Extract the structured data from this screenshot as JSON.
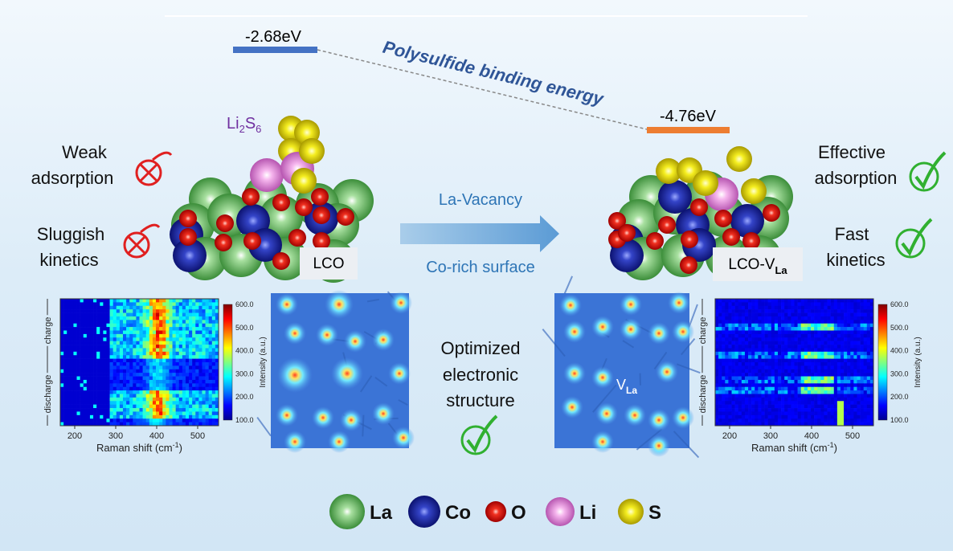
{
  "energy": {
    "lco": "-2.68eV",
    "lco_v": "-4.76eV",
    "label": "Polysulfide binding energy"
  },
  "adsorbate": [
    "Li",
    "2",
    "S",
    "6"
  ],
  "left": {
    "adsorption": [
      "Weak",
      "adsorption"
    ],
    "kinetics": [
      "Sluggish",
      "kinetics"
    ],
    "sample": "LCO"
  },
  "right": {
    "adsorption": [
      "Effective",
      "adsorption"
    ],
    "kinetics": [
      "Fast",
      "kinetics"
    ],
    "sample": [
      "LCO-V",
      "La"
    ]
  },
  "arrow": {
    "top": "La-Vacancy",
    "bottom": "Co-rich surface"
  },
  "center": [
    "Optimized",
    "electronic",
    "structure"
  ],
  "vacancy": [
    "V",
    "La"
  ],
  "raman": {
    "xticks": [
      "200",
      "300",
      "400",
      "500"
    ],
    "xlabel": [
      "Raman shift (cm",
      "-1",
      ")"
    ],
    "ylabel": [
      "discharge",
      "charge"
    ],
    "colorbar": {
      "ticks": [
        "100.0",
        "200.0",
        "300.0",
        "400.0",
        "500.0",
        "600.0"
      ],
      "label": "Intensity (a.u.)"
    }
  },
  "legend": [
    "La",
    "Co",
    "O",
    "Li",
    "S"
  ]
}
